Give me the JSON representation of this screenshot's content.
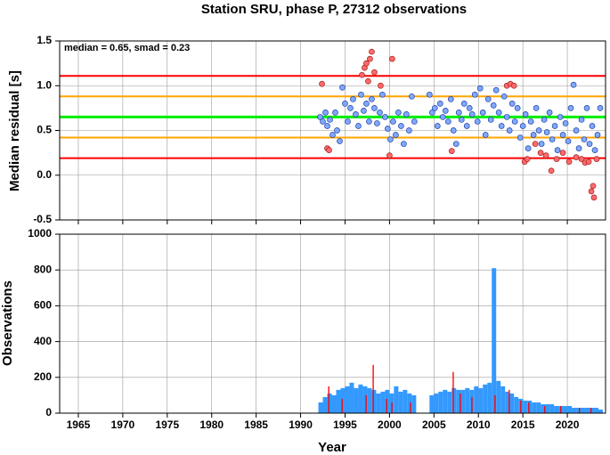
{
  "chart_data": [
    {
      "type": "scatter",
      "title": "Station SRU, phase P, 27312 observations",
      "annotation": "median = 0.65, smad = 0.23",
      "ylabel": "Median residual [s]",
      "xlim": [
        1962.9,
        2024.3
      ],
      "ylim": [
        -0.5,
        1.5
      ],
      "yticks": [
        -0.5,
        {
          "value": 0,
          "label": "0.0"
        },
        0.5,
        {
          "value": 1,
          "label": "1.0"
        },
        1.5
      ],
      "grid": true,
      "reference_lines": [
        {
          "value": 1.11,
          "color": "#ff0000"
        },
        {
          "value": 0.88,
          "color": "#ffa500"
        },
        {
          "value": 0.65,
          "color": "#00ee00"
        },
        {
          "value": 0.42,
          "color": "#ffa500"
        },
        {
          "value": 0.19,
          "color": "#ff0000"
        }
      ],
      "series": [
        {
          "color": "#7fa8ff",
          "edgecolor": "#2040a0",
          "x": [
            1992.2,
            1992.5,
            1992.8,
            1993.0,
            1993.3,
            1993.6,
            1993.9,
            1994.1,
            1994.4,
            1994.7,
            1995.0,
            1995.3,
            1995.6,
            1995.9,
            1996.2,
            1996.5,
            1996.8,
            1997.1,
            1997.4,
            1997.7,
            1998.0,
            1998.3,
            1998.6,
            1998.9,
            1999.2,
            1999.5,
            1999.8,
            2000.1,
            2000.4,
            2000.7,
            2001.0,
            2001.3,
            2001.6,
            2001.9,
            2002.2,
            2002.5,
            2002.8,
            2004.5,
            2004.8,
            2005.1,
            2005.4,
            2005.7,
            2006.0,
            2006.3,
            2006.6,
            2006.9,
            2007.2,
            2007.5,
            2007.8,
            2008.1,
            2008.4,
            2008.7,
            2009.0,
            2009.3,
            2009.6,
            2009.9,
            2010.2,
            2010.5,
            2010.8,
            2011.1,
            2011.4,
            2011.7,
            2012.0,
            2012.3,
            2012.6,
            2012.9,
            2013.2,
            2013.5,
            2013.8,
            2014.1,
            2014.4,
            2014.7,
            2015.0,
            2015.3,
            2015.6,
            2015.9,
            2016.2,
            2016.5,
            2016.8,
            2017.1,
            2017.4,
            2017.7,
            2018.0,
            2018.3,
            2018.6,
            2018.9,
            2019.2,
            2019.5,
            2019.8,
            2020.1,
            2020.4,
            2020.7,
            2021.0,
            2021.3,
            2021.6,
            2021.9,
            2022.2,
            2022.5,
            2022.8,
            2023.1,
            2023.4,
            2023.7
          ],
          "values": [
            0.65,
            0.6,
            0.7,
            0.55,
            0.62,
            0.45,
            0.7,
            0.5,
            0.38,
            0.98,
            0.8,
            0.6,
            0.75,
            0.85,
            0.68,
            0.55,
            0.9,
            0.72,
            0.8,
            0.6,
            0.85,
            0.75,
            0.58,
            0.7,
            0.9,
            0.65,
            0.52,
            0.4,
            0.6,
            0.45,
            0.7,
            0.55,
            0.35,
            0.68,
            0.5,
            0.88,
            0.6,
            0.9,
            0.7,
            0.75,
            0.55,
            0.8,
            0.65,
            0.72,
            0.6,
            0.85,
            0.5,
            0.35,
            0.7,
            0.62,
            0.8,
            0.55,
            0.75,
            0.68,
            0.9,
            0.6,
            0.97,
            0.7,
            0.45,
            0.85,
            0.62,
            0.78,
            0.95,
            0.7,
            0.55,
            0.88,
            0.65,
            0.5,
            0.8,
            0.6,
            0.75,
            0.42,
            0.55,
            0.68,
            0.3,
            0.6,
            0.45,
            0.75,
            0.5,
            0.35,
            0.62,
            0.48,
            0.7,
            0.4,
            0.55,
            0.28,
            0.65,
            0.45,
            0.58,
            0.38,
            0.75,
            1.01,
            0.5,
            0.3,
            0.62,
            0.4,
            0.75,
            0.35,
            0.55,
            0.28,
            0.45,
            0.75
          ]
        },
        {
          "color": "#ff6a6a",
          "edgecolor": "#a02020",
          "x": [
            1992.4,
            1993.0,
            1993.2,
            1996.9,
            1997.2,
            1997.4,
            1997.6,
            1997.8,
            1998.0,
            1998.3,
            1999.0,
            2000.0,
            2000.3,
            2007.0,
            2013.2,
            2013.6,
            2014.0,
            2015.2,
            2015.5,
            2016.4,
            2017.0,
            2017.6,
            2018.2,
            2018.8,
            2019.5,
            2020.2,
            2021.0,
            2021.6,
            2022.0,
            2022.4,
            2022.7,
            2022.9,
            2023.0,
            2023.3
          ],
          "values": [
            1.02,
            0.3,
            0.28,
            1.12,
            1.2,
            1.25,
            1.05,
            1.3,
            1.38,
            1.15,
            1.0,
            0.22,
            1.3,
            0.27,
            1.0,
            1.02,
            1.0,
            0.15,
            0.18,
            0.35,
            0.25,
            0.22,
            0.05,
            0.18,
            0.25,
            0.15,
            0.2,
            0.18,
            0.14,
            0.15,
            -0.18,
            -0.12,
            -0.25,
            0.18
          ]
        }
      ]
    },
    {
      "type": "bar",
      "xlabel": "Year",
      "ylabel": "Observations",
      "xlim": [
        1962.9,
        2024.3
      ],
      "ylim": [
        0,
        1000
      ],
      "xticks": [
        1965,
        1970,
        1975,
        1980,
        1985,
        1990,
        1995,
        2000,
        2005,
        2010,
        2015,
        2020
      ],
      "yticks": [
        0,
        200,
        400,
        600,
        800,
        1000
      ],
      "grid": true,
      "series": [
        {
          "color": "#3399ff",
          "x": [
            1992.0,
            1992.5,
            1993.0,
            1993.5,
            1994.0,
            1994.5,
            1995.0,
            1995.5,
            1996.0,
            1996.5,
            1997.0,
            1997.5,
            1998.0,
            1998.5,
            1999.0,
            1999.5,
            2000.0,
            2000.5,
            2001.0,
            2001.5,
            2002.0,
            2002.5,
            2003.0,
            2003.5,
            2004.0,
            2004.5,
            2005.0,
            2005.5,
            2006.0,
            2006.5,
            2007.0,
            2007.5,
            2008.0,
            2008.5,
            2009.0,
            2009.5,
            2010.0,
            2010.5,
            2011.0,
            2011.5,
            2012.0,
            2012.5,
            2013.0,
            2013.5,
            2014.0,
            2014.5,
            2015.0,
            2015.5,
            2016.0,
            2016.5,
            2017.0,
            2017.5,
            2018.0,
            2018.5,
            2019.0,
            2019.5,
            2020.0,
            2020.5,
            2021.0,
            2021.5,
            2022.0,
            2022.5,
            2023.0,
            2023.5
          ],
          "values": [
            60,
            90,
            110,
            100,
            130,
            140,
            150,
            170,
            140,
            160,
            150,
            140,
            130,
            110,
            120,
            130,
            110,
            150,
            120,
            130,
            110,
            100,
            0,
            0,
            0,
            100,
            110,
            120,
            130,
            120,
            140,
            130,
            130,
            140,
            130,
            150,
            140,
            160,
            170,
            810,
            180,
            150,
            120,
            110,
            90,
            80,
            70,
            70,
            60,
            60,
            50,
            50,
            50,
            40,
            40,
            40,
            40,
            30,
            30,
            30,
            30,
            30,
            30,
            20
          ]
        },
        {
          "color": "#ff0000",
          "x": [
            1993.1,
            1994.6,
            1997.3,
            1998.1,
            1999.6,
            2000.2,
            2002.3,
            2007.1,
            2007.9,
            2009.2,
            2011.8,
            2013.4,
            2014.7,
            2015.6,
            2017.4,
            2019.2,
            2021.3,
            2022.6
          ],
          "values": [
            150,
            80,
            100,
            270,
            80,
            60,
            60,
            230,
            110,
            90,
            100,
            130,
            70,
            60,
            40,
            40,
            30,
            30
          ]
        }
      ]
    }
  ]
}
